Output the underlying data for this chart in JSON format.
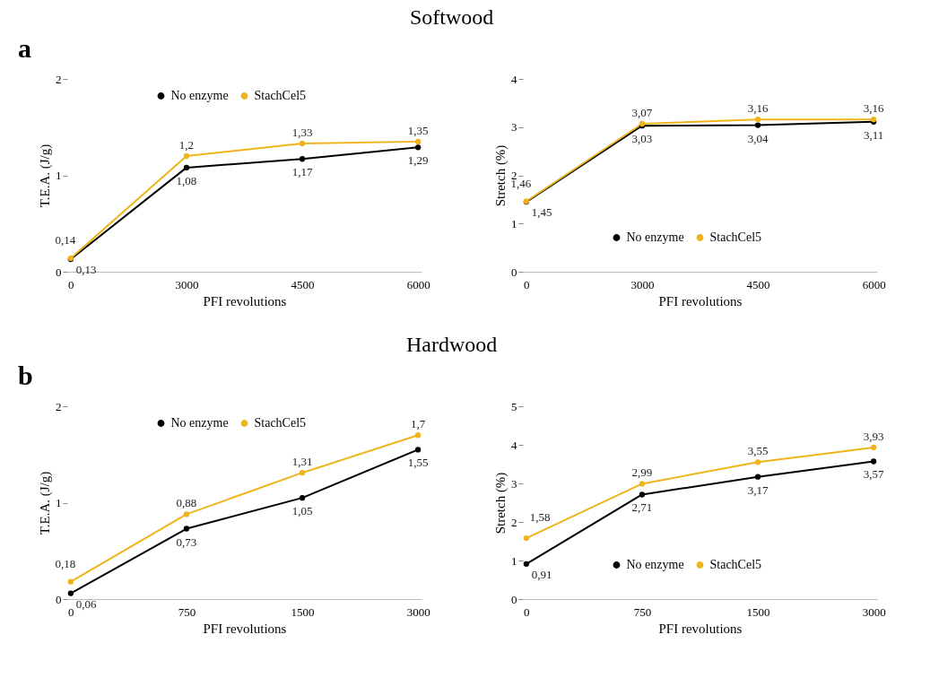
{
  "chart_data": [
    {
      "type": "line",
      "title": "Softwood",
      "annotations": [
        "a"
      ],
      "categories": [
        "0",
        "3000",
        "4500",
        "6000"
      ],
      "xlabel": "PFI revolutions",
      "ylabel": "T.E.A. (J/g)",
      "ylim": [
        0,
        2
      ],
      "yticks": [
        0,
        1,
        2
      ],
      "legend": "top",
      "marker": "circle",
      "series": [
        {
          "name": "No enzyme",
          "color": "#000000",
          "values": [
            0.13,
            1.08,
            1.17,
            1.29
          ],
          "value_labels": [
            "0,13",
            "1,08",
            "1,17",
            "1,29"
          ]
        },
        {
          "name": "StachCel5",
          "color": "#eeb41a",
          "values": [
            0.14,
            1.2,
            1.33,
            1.35
          ],
          "value_labels": [
            "0,14",
            "1,2",
            "1,33",
            "1,35"
          ]
        }
      ]
    },
    {
      "type": "line",
      "categories": [
        "0",
        "3000",
        "4500",
        "6000"
      ],
      "xlabel": "PFI revolutions",
      "ylabel": "Stretch (%)",
      "ylim": [
        0,
        4
      ],
      "yticks": [
        0,
        1,
        2,
        3,
        4
      ],
      "legend": "bottom",
      "marker": "circle",
      "series": [
        {
          "name": "No enzyme",
          "color": "#000000",
          "values": [
            1.45,
            3.03,
            3.04,
            3.11
          ],
          "value_labels": [
            "1,45",
            "3,03",
            "3,04",
            "3,11"
          ]
        },
        {
          "name": "StachCel5",
          "color": "#eeb41a",
          "values": [
            1.46,
            3.07,
            3.16,
            3.16
          ],
          "value_labels": [
            "1,46",
            "3,07",
            "3,16",
            "3,16"
          ]
        }
      ]
    },
    {
      "type": "line",
      "title": "Hardwood",
      "annotations": [
        "b"
      ],
      "categories": [
        "0",
        "750",
        "1500",
        "3000"
      ],
      "xlabel": "PFI revolutions",
      "ylabel": "T.E.A. (J/g)",
      "ylim": [
        0,
        2
      ],
      "yticks": [
        0,
        1,
        2
      ],
      "legend": "top",
      "marker": "circle",
      "series": [
        {
          "name": "No enzyme",
          "color": "#000000",
          "values": [
            0.06,
            0.73,
            1.05,
            1.55
          ],
          "value_labels": [
            "0,06",
            "0,73",
            "1,05",
            "1,55"
          ]
        },
        {
          "name": "StachCel5",
          "color": "#eeb41a",
          "values": [
            0.18,
            0.88,
            1.31,
            1.7
          ],
          "value_labels": [
            "0,18",
            "0,88",
            "1,31",
            "1,7"
          ]
        }
      ]
    },
    {
      "type": "line",
      "categories": [
        "0",
        "750",
        "1500",
        "3000"
      ],
      "xlabel": "PFI revolutions",
      "ylabel": "Stretch (%)",
      "ylim": [
        0,
        5
      ],
      "yticks": [
        0,
        1,
        2,
        3,
        4,
        5
      ],
      "legend": "bottom",
      "marker": "circle",
      "series": [
        {
          "name": "No enzyme",
          "color": "#000000",
          "values": [
            0.91,
            2.71,
            3.17,
            3.57
          ],
          "value_labels": [
            "0,91",
            "2,71",
            "3,17",
            "3,57"
          ]
        },
        {
          "name": "StachCel5",
          "color": "#eeb41a",
          "values": [
            1.58,
            2.99,
            3.55,
            3.93
          ],
          "value_labels": [
            "1,58",
            "2,99",
            "3,55",
            "3,93"
          ]
        }
      ]
    }
  ]
}
